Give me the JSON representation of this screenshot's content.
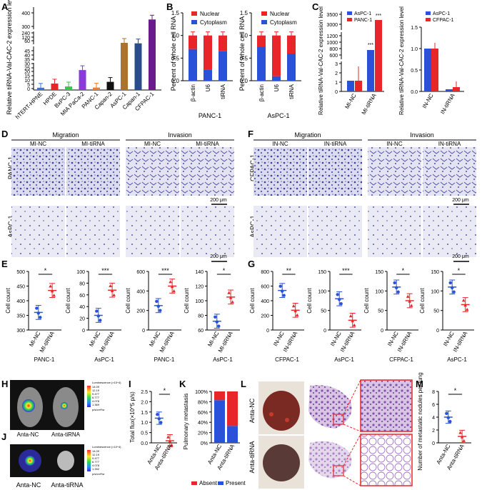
{
  "panel_letters": [
    "A",
    "B",
    "C",
    "D",
    "E",
    "F",
    "G",
    "H",
    "I",
    "J",
    "K",
    "L",
    "M"
  ],
  "colors": {
    "nuclear": "#e8262a",
    "cytoplasm": "#2a52d8",
    "control": "#2a52d8",
    "treat": "#e8262a"
  },
  "panelA": {
    "ylabel": "Relative tiRNA-Val-CAC-2 expression level",
    "ticks": [
      "0",
      "5",
      "10",
      "15",
      "20",
      "25",
      "30",
      "35",
      "40",
      "45",
      "60",
      "120",
      "240",
      "300",
      "400"
    ],
    "chart_data": {
      "type": "bar",
      "categories": [
        "hTERT-HPNE",
        "HPDE",
        "BxPC-3",
        "MIA PaCa-2",
        "PANC-1",
        "Capan-2",
        "AsPC-1",
        "Capan-1",
        "CFPAC-1"
      ],
      "values": [
        1,
        6,
        2.5,
        22,
        1.2,
        8,
        60,
        55,
        300
      ],
      "colors": [
        "#3a74d8",
        "#e8262a",
        "#35c84a",
        "#8a3ad8",
        "#f07e2a",
        "#111111",
        "#a87430",
        "#2a4c8a",
        "#6a1a8a"
      ]
    }
  },
  "panelB": {
    "ylabel": "Percent of whole cell RNA",
    "yticks": [
      "0.0",
      "0.5",
      "1.0",
      "1.5"
    ],
    "legend": [
      "Nuclear",
      "Cytoplasm"
    ],
    "charts": [
      {
        "type": "bar",
        "title": "PANC-1",
        "categories": [
          "β-actin",
          "U6",
          "tiRNA"
        ],
        "cytoplasm": [
          0.7,
          0.25,
          0.65
        ],
        "nuclear": [
          0.3,
          0.75,
          0.35
        ]
      },
      {
        "type": "bar",
        "title": "AsPC-1",
        "categories": [
          "β-actin",
          "U6",
          "tiRNA"
        ],
        "cytoplasm": [
          0.75,
          0.1,
          0.6
        ],
        "nuclear": [
          0.25,
          0.9,
          0.4
        ]
      }
    ]
  },
  "panelC": {
    "ylabel": "Relative tiRNA-Val-CAC-2 expression level",
    "left": {
      "legend": [
        "AsPC-1",
        "PANC-1"
      ],
      "yticks": [
        "0",
        "1",
        "2",
        "3",
        "600",
        "800",
        "1000",
        "1200",
        "3000",
        "3500"
      ],
      "categories": [
        "MI-NC",
        "MI-tiRNA"
      ],
      "sig": "***"
    },
    "right": {
      "legend": [
        "AsPC-1",
        "CFPAC-1"
      ],
      "yticks": [
        "0.0",
        "0.5",
        "1.0",
        "1.5"
      ],
      "categories": [
        "IN-NC",
        "IN-tiRNA"
      ],
      "values_a": [
        1.0,
        0.05
      ],
      "values_b": [
        1.0,
        0.1
      ]
    }
  },
  "panelD": {
    "headers": [
      "Migration",
      "Invasion"
    ],
    "cols": [
      "MI-NC",
      "MI-tiRNA",
      "MI-NC",
      "MI-tiRNA"
    ],
    "rows": [
      "PANC-1",
      "AsPC-1"
    ],
    "scale": "200 μm"
  },
  "panelF": {
    "headers": [
      "Migration",
      "Invasion"
    ],
    "cols": [
      "IN-NC",
      "IN-tiRNA",
      "IN-NC",
      "IN-tiRNA"
    ],
    "rows": [
      "CFPAC-1",
      "AsPC-1"
    ],
    "scale": "200 μm"
  },
  "panelE": {
    "ylabel": "Cell count",
    "charts": [
      {
        "type": "scatter",
        "cell": "PANC-1",
        "categories": [
          "MI-NC",
          "MI-tiRNA"
        ],
        "means": [
          360,
          435
        ],
        "sig": "*",
        "yticks": [
          "300",
          "350",
          "400",
          "450",
          "500"
        ],
        "ylim": [
          300,
          500
        ]
      },
      {
        "type": "scatter",
        "cell": "AsPC-1",
        "categories": [
          "MI-NC",
          "MI-tiRNA"
        ],
        "means": [
          25,
          68
        ],
        "sig": "***",
        "yticks": [
          "0",
          "20",
          "40",
          "60",
          "80",
          "100"
        ],
        "ylim": [
          0,
          100
        ]
      },
      {
        "type": "scatter",
        "cell": "PANC-1",
        "categories": [
          "MI-NC",
          "MI-tiRNA"
        ],
        "means": [
          250,
          450
        ],
        "sig": "***",
        "yticks": [
          "0",
          "200",
          "400",
          "600"
        ],
        "ylim": [
          0,
          600
        ]
      },
      {
        "type": "scatter",
        "cell": "AsPC-1",
        "categories": [
          "MI-NC",
          "MI-tiRNA"
        ],
        "means": [
          72,
          105
        ],
        "sig": "*",
        "yticks": [
          "60",
          "80",
          "100",
          "120",
          "140"
        ],
        "ylim": [
          60,
          140
        ]
      }
    ]
  },
  "panelG": {
    "ylabel": "Cell count",
    "charts": [
      {
        "type": "scatter",
        "cell": "CFPAC-1",
        "categories": [
          "IN-NC",
          "IN-tiRNA"
        ],
        "means": [
          540,
          270
        ],
        "sig": "**",
        "yticks": [
          "0",
          "200",
          "400",
          "600",
          "800"
        ],
        "ylim": [
          0,
          800
        ]
      },
      {
        "type": "scatter",
        "cell": "AsPC-1",
        "categories": [
          "IN-NC",
          "IN-tiRNA"
        ],
        "means": [
          80,
          25
        ],
        "sig": "***",
        "yticks": [
          "0",
          "50",
          "100",
          "150"
        ],
        "ylim": [
          0,
          150
        ]
      },
      {
        "type": "scatter",
        "cell": "CFPAC-1",
        "categories": [
          "IN-NC",
          "IN-tiRNA"
        ],
        "means": [
          110,
          75
        ],
        "sig": "*",
        "yticks": [
          "0",
          "50",
          "100",
          "150"
        ],
        "ylim": [
          0,
          150
        ]
      },
      {
        "type": "scatter",
        "cell": "AsPC-1",
        "categories": [
          "IN-NC",
          "IN-tiRNA"
        ],
        "means": [
          110,
          65
        ],
        "sig": "*",
        "yticks": [
          "0",
          "50",
          "100",
          "150"
        ],
        "ylim": [
          0,
          150
        ]
      }
    ]
  },
  "panelH": {
    "labels": [
      "Anta-NC",
      "Anta-tiRNA"
    ],
    "scale_title": "Luminescence (×10^4)",
    "scale_vals": [
      "14.09",
      "12.19",
      "9.477",
      "6.777",
      "4.078",
      "1.369"
    ],
    "unit": "p/s/cm²/sr"
  },
  "panelJ": {
    "labels": [
      "Anta-NC",
      "Anta-tiRNA"
    ],
    "scale_title": "Luminescence (×10^4)",
    "scale_vals": [
      "14.09",
      "12.19",
      "9.477",
      "6.777",
      "4.078",
      "1.392"
    ],
    "unit": "p/s/cm²/sr"
  },
  "panelI": {
    "ylabel": "Total flux(×10^5 p/s)",
    "chart_data": {
      "type": "scatter",
      "categories": [
        "Anta-NC",
        "Anta-tiRNA"
      ],
      "means": [
        1.2,
        0.1
      ],
      "sig": "*",
      "yticks": [
        "0.0",
        "0.5",
        "1.0",
        "1.5",
        "2.0",
        "2.5"
      ],
      "ylim": [
        0,
        2.5
      ]
    }
  },
  "panelK": {
    "ylabel": "Pulmonary metastasis",
    "yticks": [
      "0%",
      "20%",
      "40%",
      "60%",
      "80%",
      "100%"
    ],
    "legend": [
      "Absent",
      "Present"
    ],
    "chart_data": {
      "type": "bar",
      "categories": [
        "Anta-NC",
        "Anta-tiRNA"
      ],
      "present": [
        83,
        33
      ],
      "absent": [
        17,
        67
      ]
    }
  },
  "panelL": {
    "rows": [
      "Anta-NC",
      "Anta-tiRNA"
    ]
  },
  "panelM": {
    "ylabel": "Number of metastatic nodules per lung",
    "chart_data": {
      "type": "scatter",
      "categories": [
        "Anta-NC",
        "Anta-tiRNA"
      ],
      "means": [
        4,
        1
      ],
      "sig": "*",
      "yticks": [
        "0",
        "2",
        "4",
        "6",
        "8"
      ],
      "ylim": [
        0,
        8
      ]
    }
  }
}
